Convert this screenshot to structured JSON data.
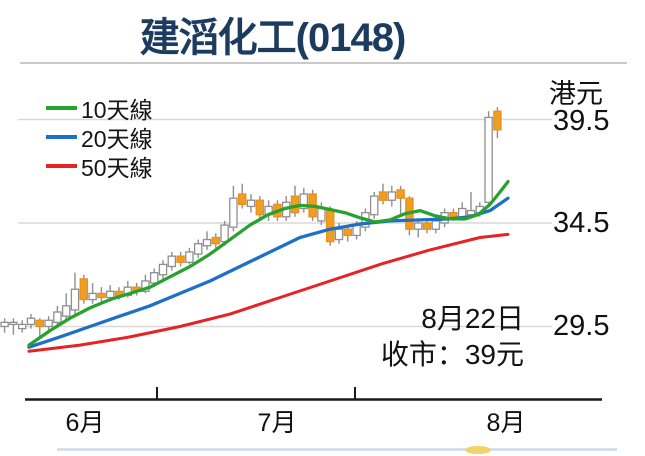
{
  "chart_data": {
    "type": "candlestick",
    "title": "建滔化工(0148)",
    "y_axis": {
      "unit": "港元",
      "tick_labels": [
        "39.5",
        "34.5",
        "29.5"
      ],
      "tick_values": [
        39.5,
        34.5,
        29.5
      ]
    },
    "x_axis": {
      "labels": [
        "6月",
        "7月",
        "8月"
      ]
    },
    "annotation": {
      "date": "8月22日",
      "close": "收市：39元"
    },
    "legend": [
      {
        "label": "10天線",
        "series": "ma10",
        "color": "#27a22e"
      },
      {
        "label": "20天線",
        "series": "ma20",
        "color": "#1e6fc8"
      },
      {
        "label": "50天線",
        "series": "ma50",
        "color": "#e62222"
      }
    ],
    "colors": {
      "candle_up_fill": "#ffffff",
      "candle_up_border": "#8f8f8f",
      "candle_down_fill": "#f09d24",
      "candle_down_border": "#e8921a",
      "wick": "#8f8f8f",
      "grid": "#d9d9d9",
      "axis": "#1a1a1a",
      "title": "#1c3b5e",
      "footer_line": "#ccdaeb",
      "footer_dot": "#f2d36b"
    },
    "ylim": [
      26.5,
      41.5
    ],
    "grid": true,
    "legend_position": "top-left",
    "candles_ohlc": [
      [
        29.5,
        29.9,
        29.2,
        29.7
      ],
      [
        29.6,
        29.9,
        29.1,
        29.7
      ],
      [
        29.4,
        29.8,
        29.2,
        29.6
      ],
      [
        29.6,
        30.1,
        29.4,
        29.9
      ],
      [
        29.8,
        29.9,
        29.0,
        29.5
      ],
      [
        29.5,
        30.0,
        29.3,
        29.8
      ],
      [
        29.7,
        30.5,
        29.5,
        30.2
      ],
      [
        30.0,
        31.1,
        29.8,
        30.5
      ],
      [
        30.3,
        32.1,
        30.1,
        31.3
      ],
      [
        31.8,
        32.0,
        30.6,
        30.8
      ],
      [
        30.8,
        31.6,
        30.6,
        31.1
      ],
      [
        31.1,
        31.4,
        30.7,
        30.9
      ],
      [
        30.9,
        31.5,
        30.7,
        31.2
      ],
      [
        31.2,
        31.4,
        30.8,
        31.0
      ],
      [
        31.0,
        31.7,
        30.9,
        31.4
      ],
      [
        31.4,
        31.6,
        31.0,
        31.2
      ],
      [
        31.2,
        32.0,
        31.1,
        31.7
      ],
      [
        31.6,
        32.3,
        31.4,
        32.1
      ],
      [
        32.0,
        32.7,
        31.8,
        32.5
      ],
      [
        32.4,
        33.1,
        32.2,
        32.9
      ],
      [
        32.9,
        33.1,
        32.4,
        32.6
      ],
      [
        32.6,
        33.3,
        32.5,
        33.1
      ],
      [
        33.0,
        33.7,
        32.8,
        33.5
      ],
      [
        33.4,
        34.1,
        33.2,
        33.7
      ],
      [
        33.8,
        34.0,
        33.3,
        33.5
      ],
      [
        33.6,
        34.6,
        33.4,
        34.4
      ],
      [
        34.3,
        36.3,
        34.1,
        35.7
      ],
      [
        35.9,
        36.4,
        35.2,
        35.4
      ],
      [
        35.3,
        35.9,
        35.0,
        35.6
      ],
      [
        35.6,
        35.8,
        34.7,
        34.9
      ],
      [
        34.9,
        35.6,
        34.6,
        35.3
      ],
      [
        35.4,
        35.6,
        34.6,
        34.8
      ],
      [
        34.8,
        35.8,
        34.6,
        35.5
      ],
      [
        35.8,
        36.3,
        34.8,
        35.0
      ],
      [
        35.2,
        36.2,
        35.0,
        35.9
      ],
      [
        35.9,
        36.1,
        34.6,
        34.8
      ],
      [
        34.6,
        35.5,
        34.4,
        35.2
      ],
      [
        35.1,
        35.3,
        33.4,
        33.6
      ],
      [
        33.7,
        34.5,
        33.5,
        34.2
      ],
      [
        34.2,
        34.4,
        33.6,
        33.9
      ],
      [
        33.9,
        34.6,
        33.7,
        34.4
      ],
      [
        34.3,
        35.2,
        34.1,
        35.0
      ],
      [
        34.9,
        36.0,
        34.7,
        35.8
      ],
      [
        36.0,
        36.4,
        35.4,
        35.6
      ],
      [
        35.6,
        36.3,
        35.3,
        36.0
      ],
      [
        36.1,
        36.3,
        34.8,
        35.7
      ],
      [
        35.7,
        35.8,
        33.9,
        34.2
      ],
      [
        34.2,
        34.7,
        33.8,
        34.5
      ],
      [
        34.5,
        34.7,
        34.0,
        34.2
      ],
      [
        34.2,
        34.8,
        34.0,
        34.6
      ],
      [
        34.5,
        35.2,
        34.3,
        35.0
      ],
      [
        35.0,
        35.2,
        34.6,
        34.8
      ],
      [
        34.8,
        35.5,
        34.6,
        35.2
      ],
      [
        34.9,
        36.0,
        34.8,
        35.1
      ],
      [
        35.0,
        35.5,
        34.8,
        35.3
      ],
      [
        35.5,
        39.9,
        35.3,
        39.6
      ],
      [
        39.9,
        40.1,
        38.6,
        39.0
      ]
    ],
    "ma10": [
      [
        29,
        28.6
      ],
      [
        50,
        29.3
      ],
      [
        70,
        29.9
      ],
      [
        90,
        30.4
      ],
      [
        110,
        30.8
      ],
      [
        130,
        31.1
      ],
      [
        150,
        31.4
      ],
      [
        170,
        31.9
      ],
      [
        190,
        32.4
      ],
      [
        210,
        33.0
      ],
      [
        230,
        33.7
      ],
      [
        250,
        34.4
      ],
      [
        268,
        34.9
      ],
      [
        285,
        35.2
      ],
      [
        300,
        35.35
      ],
      [
        315,
        35.3
      ],
      [
        330,
        35.15
      ],
      [
        345,
        35.0
      ],
      [
        360,
        34.75
      ],
      [
        375,
        34.55
      ],
      [
        390,
        34.65
      ],
      [
        405,
        34.95
      ],
      [
        420,
        35.1
      ],
      [
        435,
        34.85
      ],
      [
        450,
        34.7
      ],
      [
        465,
        34.7
      ],
      [
        478,
        34.9
      ],
      [
        490,
        35.4
      ],
      [
        500,
        36.0
      ],
      [
        508,
        36.5
      ]
    ],
    "ma20": [
      [
        29,
        28.5
      ],
      [
        60,
        29.0
      ],
      [
        90,
        29.5
      ],
      [
        120,
        30.0
      ],
      [
        150,
        30.5
      ],
      [
        180,
        31.1
      ],
      [
        210,
        31.7
      ],
      [
        240,
        32.4
      ],
      [
        270,
        33.1
      ],
      [
        300,
        33.8
      ],
      [
        330,
        34.2
      ],
      [
        360,
        34.45
      ],
      [
        390,
        34.6
      ],
      [
        420,
        34.65
      ],
      [
        450,
        34.7
      ],
      [
        470,
        34.8
      ],
      [
        490,
        35.1
      ],
      [
        508,
        35.7
      ]
    ],
    "ma50": [
      [
        29,
        28.3
      ],
      [
        80,
        28.6
      ],
      [
        130,
        29.0
      ],
      [
        180,
        29.5
      ],
      [
        230,
        30.1
      ],
      [
        280,
        30.9
      ],
      [
        330,
        31.7
      ],
      [
        380,
        32.5
      ],
      [
        430,
        33.2
      ],
      [
        480,
        33.8
      ],
      [
        508,
        33.95
      ]
    ]
  }
}
